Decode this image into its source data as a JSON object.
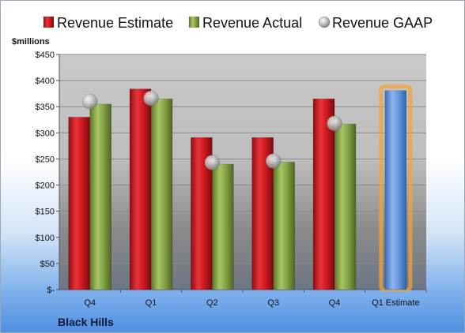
{
  "chart_data": {
    "type": "bar",
    "company": "Black Hills",
    "y_unit_label": "$millions",
    "categories": [
      "Q4",
      "Q1",
      "Q2",
      "Q3",
      "Q4",
      "Q1 Estimate"
    ],
    "ylim": [
      0,
      450
    ],
    "y_ticks": [
      0,
      50,
      100,
      150,
      200,
      250,
      300,
      350,
      400,
      450
    ],
    "y_tick_labels": [
      "$-",
      "$50",
      "$100",
      "$150",
      "$200",
      "$250",
      "$300",
      "$350",
      "$400",
      "$450"
    ],
    "grid": true,
    "legend_position": "top",
    "series": [
      {
        "name": "Revenue Estimate",
        "type": "bar",
        "color": "#c8161d",
        "values": [
          330,
          384,
          291,
          291,
          365,
          null
        ]
      },
      {
        "name": "Revenue Actual",
        "type": "bar",
        "color": "#8caa4a",
        "values": [
          355,
          365,
          240,
          244,
          317,
          null
        ]
      },
      {
        "name": "Revenue GAAP",
        "type": "marker",
        "color": "#b0b0b0",
        "values": [
          360,
          366,
          243,
          246,
          318,
          null
        ]
      },
      {
        "name": "Q1 Estimate",
        "type": "bar",
        "color": "#5b8fd6",
        "highlight": "#f2a33a",
        "values": [
          null,
          null,
          null,
          null,
          null,
          381
        ]
      }
    ]
  }
}
